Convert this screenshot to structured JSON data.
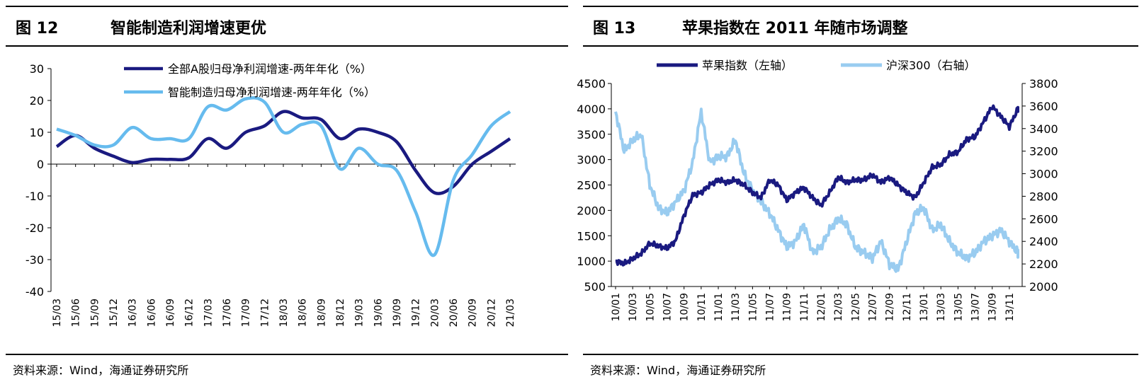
{
  "left": {
    "fig_label": "图 12",
    "title": "智能制造利润增速更优",
    "source": "资料来源：Wind，海通证券研究所"
  },
  "right": {
    "fig_label": "图 13",
    "title": "苹果指数在 2011 年随市场调整",
    "source": "资料来源：Wind，海通证券研究所"
  },
  "colors": {
    "dark_blue": "#1a1a80",
    "light_blue": "#66bbee",
    "light_blue_2": "#99ccf0"
  },
  "chart_data": [
    {
      "type": "line",
      "categories": [
        "15/03",
        "15/06",
        "15/09",
        "15/12",
        "16/03",
        "16/06",
        "16/09",
        "16/12",
        "17/03",
        "17/06",
        "17/09",
        "17/12",
        "18/03",
        "18/06",
        "18/09",
        "18/12",
        "19/03",
        "19/06",
        "19/09",
        "19/12",
        "20/03",
        "20/06",
        "20/09",
        "20/12",
        "21/03"
      ],
      "ylim": [
        -40,
        30
      ],
      "yticks": [
        -40,
        -30,
        -20,
        -10,
        0,
        10,
        20,
        30
      ],
      "series": [
        {
          "name": "全部A股归母净利润增速-两年年化（%）",
          "color": "#1a1a80",
          "values": [
            5.5,
            9,
            5,
            2.5,
            0.5,
            1.5,
            1.5,
            2,
            8,
            5,
            10,
            12,
            16.5,
            14.5,
            14,
            8,
            11,
            10,
            7,
            -2,
            -9,
            -7,
            0,
            4,
            8
          ]
        },
        {
          "name": "智能制造归母净利润增速-两年年化（%）",
          "color": "#66bbee",
          "values": [
            11,
            9,
            6,
            6,
            11.5,
            8,
            8,
            8,
            18,
            17,
            20.5,
            19.5,
            10,
            12.5,
            12,
            -1.5,
            5,
            0,
            -2,
            -15,
            -28.5,
            -5,
            3,
            12,
            16.5
          ]
        }
      ]
    },
    {
      "type": "line",
      "x_ticks": [
        "10/01",
        "10/03",
        "10/05",
        "10/07",
        "10/09",
        "10/11",
        "11/01",
        "11/03",
        "11/05",
        "11/07",
        "11/09",
        "11/11",
        "12/01",
        "12/03",
        "12/05",
        "12/07",
        "12/09",
        "12/11",
        "13/01",
        "13/03",
        "13/05",
        "13/07",
        "13/09",
        "13/11"
      ],
      "y_left": {
        "lim": [
          500,
          4500
        ],
        "ticks": [
          500,
          1000,
          1500,
          2000,
          2500,
          3000,
          3500,
          4000,
          4500
        ]
      },
      "y_right": {
        "lim": [
          2000,
          3800
        ],
        "ticks": [
          2000,
          2200,
          2400,
          2600,
          2800,
          3000,
          3200,
          3400,
          3600,
          3800
        ]
      },
      "series": [
        {
          "name": "苹果指数（左轴）",
          "axis": "left",
          "color": "#1a1a80",
          "x": [
            0,
            0.5,
            1,
            1.5,
            2,
            2.5,
            3,
            3.5,
            4,
            4.5,
            5,
            5.5,
            6,
            6.5,
            7,
            7.5,
            8,
            8.5,
            9,
            9.5,
            10,
            10.5,
            11,
            11.5,
            12,
            12.5,
            13,
            13.5,
            14,
            14.5,
            15,
            15.5,
            16,
            16.5,
            17,
            17.5,
            18,
            18.5,
            19,
            19.5,
            20,
            20.5,
            21,
            21.5,
            22,
            22.5,
            23,
            23.5
          ],
          "values": [
            1000,
            950,
            1050,
            1150,
            1350,
            1300,
            1250,
            1400,
            1900,
            2300,
            2350,
            2500,
            2600,
            2550,
            2600,
            2500,
            2350,
            2250,
            2600,
            2500,
            2200,
            2350,
            2450,
            2250,
            2100,
            2350,
            2650,
            2550,
            2600,
            2600,
            2700,
            2550,
            2650,
            2500,
            2350,
            2250,
            2550,
            2850,
            2900,
            3100,
            3150,
            3400,
            3450,
            3750,
            4050,
            3850,
            3650,
            4000
          ]
        },
        {
          "name": "沪深300（右轴）",
          "axis": "right",
          "color": "#99ccf0",
          "x": [
            0,
            0.5,
            1,
            1.5,
            2,
            2.5,
            3,
            3.5,
            4,
            4.5,
            5,
            5.5,
            6,
            6.5,
            7,
            7.5,
            8,
            8.5,
            9,
            9.5,
            10,
            10.5,
            11,
            11.5,
            12,
            12.5,
            13,
            13.5,
            14,
            14.5,
            15,
            15.5,
            16,
            16.5,
            17,
            17.5,
            18,
            18.5,
            19,
            19.5,
            20,
            20.5,
            21,
            21.5,
            22,
            22.5,
            23,
            23.5
          ],
          "values": [
            3550,
            3200,
            3300,
            3350,
            2900,
            2700,
            2650,
            2750,
            2850,
            3100,
            3550,
            3100,
            3150,
            3150,
            3300,
            3000,
            2850,
            2750,
            2650,
            2500,
            2350,
            2400,
            2550,
            2300,
            2350,
            2500,
            2600,
            2550,
            2350,
            2300,
            2250,
            2400,
            2200,
            2150,
            2400,
            2650,
            2700,
            2500,
            2550,
            2400,
            2300,
            2250,
            2300,
            2400,
            2450,
            2500,
            2400,
            2300
          ]
        }
      ]
    }
  ]
}
